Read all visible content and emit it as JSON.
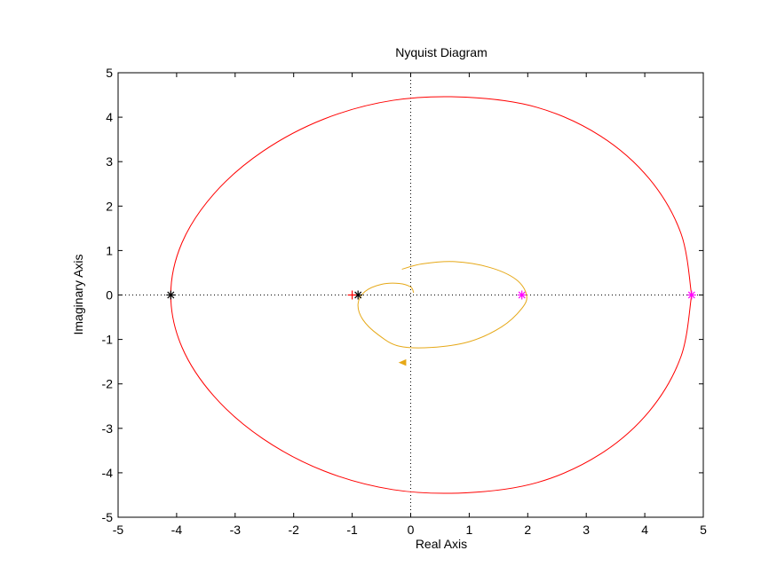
{
  "chart_data": {
    "type": "line",
    "title": "Nyquist Diagram",
    "xlabel": "Real Axis",
    "ylabel": "Imaginary Axis",
    "xlim": [
      -5,
      5
    ],
    "ylim": [
      -5,
      5
    ],
    "xticks": [
      "-5",
      "-4",
      "-3",
      "-2",
      "-1",
      "0",
      "1",
      "2",
      "3",
      "4",
      "5"
    ],
    "yticks": [
      "5",
      "4",
      "3",
      "2",
      "1",
      "0",
      "-1",
      "-2",
      "-3",
      "-4",
      "-5"
    ],
    "grid": false,
    "reference_lines": {
      "real_axis": true,
      "imaginary_axis": true
    },
    "series": [
      {
        "color": "#ff0000",
        "curve": "closed loop",
        "x": [
          4.8,
          4.62,
          4.08,
          3.24,
          2.16,
          0.94,
          -0.3,
          -1.48,
          -2.53,
          -3.36,
          -3.91,
          -4.1,
          -3.91,
          -3.36,
          -2.53,
          -1.48,
          -0.3,
          0.94,
          2.16,
          3.24,
          4.08,
          4.62,
          4.8
        ],
        "y": [
          0,
          1.38,
          2.61,
          3.58,
          4.22,
          4.45,
          4.38,
          3.96,
          3.23,
          2.28,
          1.17,
          0,
          -1.17,
          -2.28,
          -3.23,
          -3.96,
          -4.38,
          -4.45,
          -4.22,
          -3.58,
          -2.61,
          -1.38,
          0
        ]
      },
      {
        "color": "#e6a817",
        "curve": "open path",
        "x": [
          0.05,
          0.0,
          -0.2,
          -0.5,
          -0.78,
          -0.9,
          -0.82,
          -0.55,
          -0.2,
          0.35,
          1.0,
          1.55,
          1.9,
          1.98,
          1.8,
          1.35,
          0.75,
          0.2,
          -0.15
        ],
        "y": [
          0.05,
          0.18,
          0.26,
          0.24,
          0.08,
          -0.2,
          -0.55,
          -0.9,
          -1.15,
          -1.18,
          -1.05,
          -0.72,
          -0.3,
          0.0,
          0.35,
          0.62,
          0.75,
          0.7,
          0.58
        ]
      }
    ],
    "markers": [
      {
        "color": "#000000",
        "x": -4.1,
        "y": 0
      },
      {
        "color": "#000000",
        "x": -0.9,
        "y": 0
      },
      {
        "color": "#ff00ff",
        "x": 1.9,
        "y": 0
      },
      {
        "color": "#ff00ff",
        "x": 4.8,
        "y": 0
      },
      {
        "color": "#ff0000",
        "x": -1.0,
        "y": 0,
        "symbol": "+"
      }
    ],
    "arrow": {
      "color": "#e6a817",
      "x": -0.13,
      "y": -1.52
    }
  }
}
